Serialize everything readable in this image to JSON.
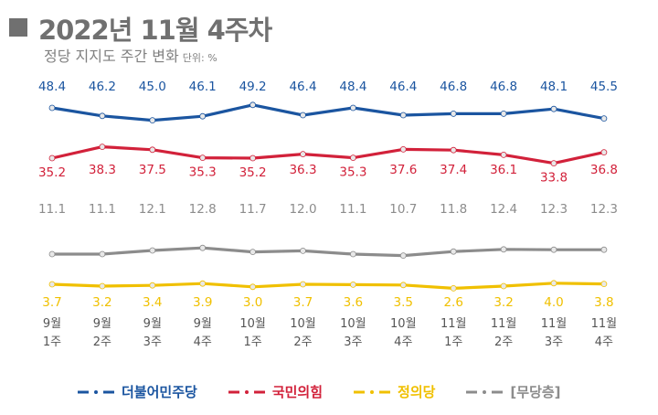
{
  "title": "2022년 11월 4주차",
  "subtitle": "정당 지지도 주간 변화",
  "unit": "단위: %",
  "chart_data": {
    "type": "line",
    "categories": [
      [
        "9월",
        "1주"
      ],
      [
        "9월",
        "2주"
      ],
      [
        "9월",
        "3주"
      ],
      [
        "9월",
        "4주"
      ],
      [
        "10월",
        "1주"
      ],
      [
        "10월",
        "2주"
      ],
      [
        "10월",
        "3주"
      ],
      [
        "10월",
        "4주"
      ],
      [
        "11월",
        "1주"
      ],
      [
        "11월",
        "2주"
      ],
      [
        "11월",
        "3주"
      ],
      [
        "11월",
        "4주"
      ]
    ],
    "series": [
      {
        "name": "더불어민주당",
        "color": "#1b55a0",
        "values": [
          48.4,
          46.2,
          45.0,
          46.1,
          49.2,
          46.4,
          48.4,
          46.4,
          46.8,
          46.8,
          48.1,
          45.5
        ]
      },
      {
        "name": "국민의힘",
        "color": "#d2213a",
        "values": [
          35.2,
          38.3,
          37.5,
          35.3,
          35.2,
          36.3,
          35.3,
          37.6,
          37.4,
          36.1,
          33.8,
          36.8
        ]
      },
      {
        "name": "[무당층]",
        "color": "#8c8c8c",
        "values": [
          11.1,
          11.1,
          12.1,
          12.8,
          11.7,
          12.0,
          11.1,
          10.7,
          11.8,
          12.4,
          12.3,
          12.3
        ]
      },
      {
        "name": "정의당",
        "color": "#f0c000",
        "values": [
          3.7,
          3.2,
          3.4,
          3.9,
          3.0,
          3.7,
          3.6,
          3.5,
          2.6,
          3.2,
          4.0,
          3.8
        ]
      }
    ],
    "legend_order": [
      0,
      1,
      3,
      2
    ],
    "legend_placement": "bottom",
    "grid": false
  }
}
